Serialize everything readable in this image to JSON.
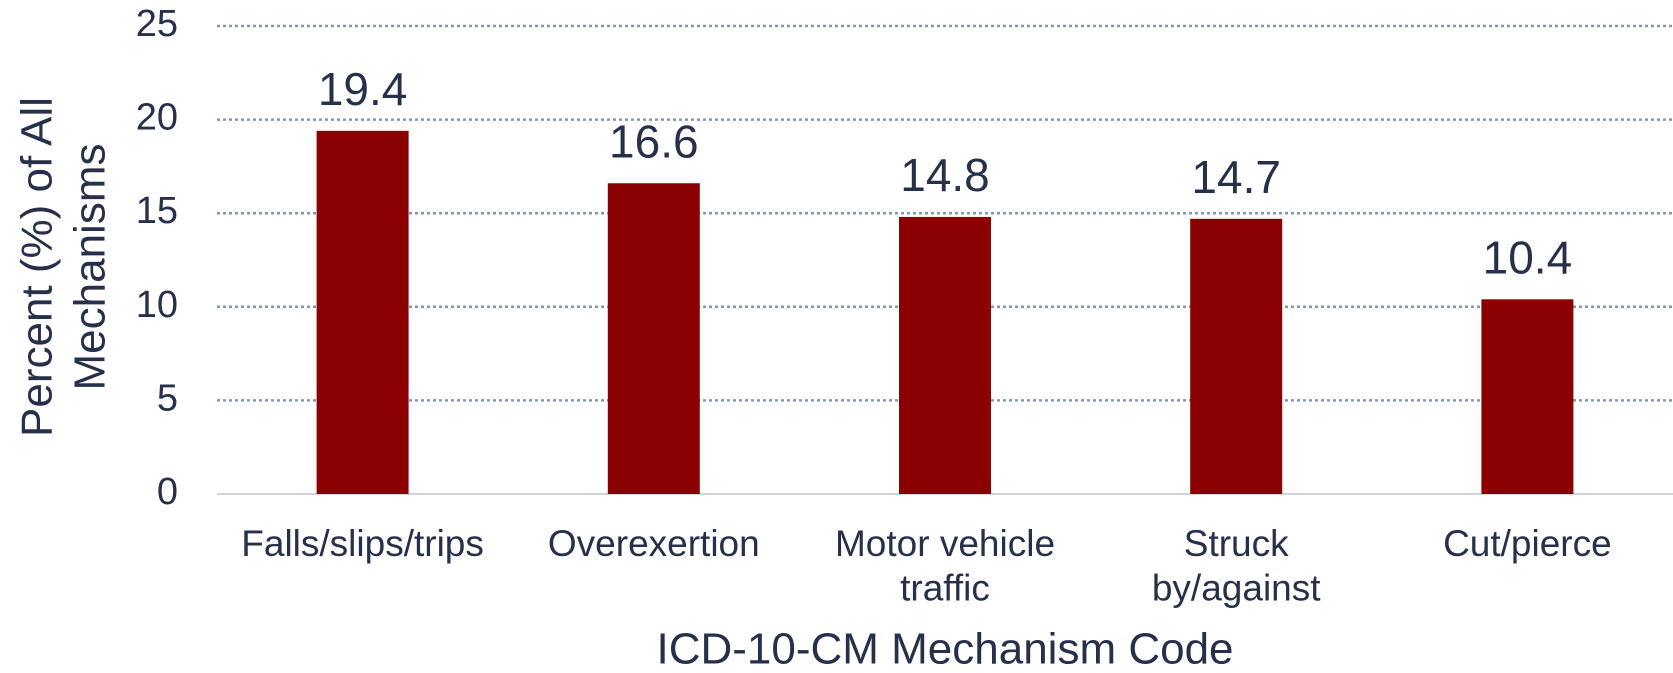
{
  "chart_data": {
    "type": "bar",
    "x_label": "ICD-10-CM Mechanism Code",
    "y_label": "Percent (%) of All\nMechanisms",
    "categories": [
      "Falls/slips/trips",
      "Overexertion",
      "Motor vehicle\ntraffic",
      "Struck\nby/against",
      "Cut/pierce"
    ],
    "values": [
      19.4,
      16.6,
      14.8,
      14.7,
      10.4
    ],
    "color": "#8b0000",
    "ylim": [
      0,
      25
    ],
    "yticks": [
      0,
      5,
      10,
      15,
      20,
      25
    ],
    "grid": true
  }
}
